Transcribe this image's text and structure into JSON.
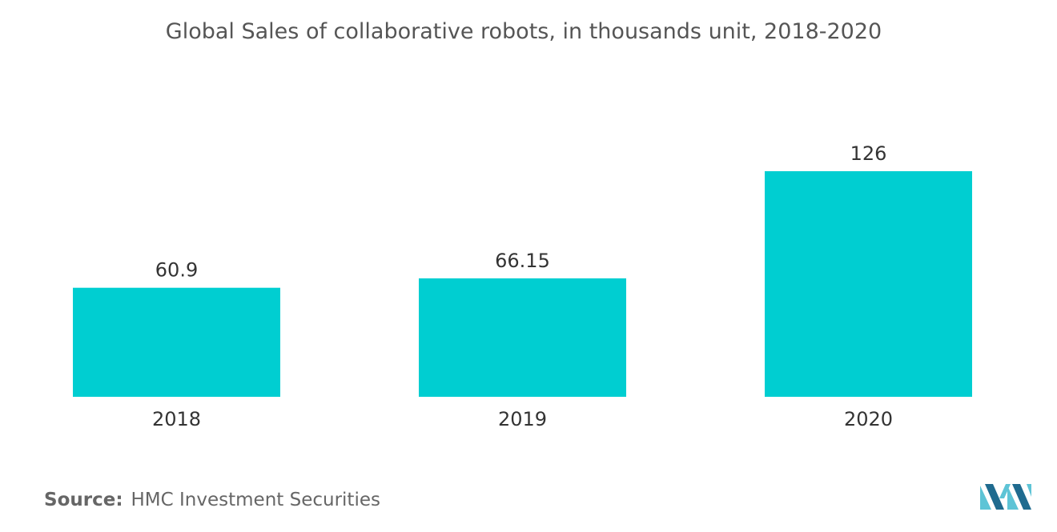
{
  "title": "Global Sales of collaborative robots, in thousands unit, 2018-2020",
  "source": {
    "label": "Source:",
    "text": "HMC Investment Securities"
  },
  "colors": {
    "bar": "#00ced1",
    "logo_light": "#5ec4d6",
    "logo_dark": "#1f6b8f"
  },
  "logo_icon": "mordor-intelligence-logo",
  "chart_data": {
    "type": "bar",
    "categories": [
      "2018",
      "2019",
      "2020"
    ],
    "values": [
      60.9,
      66.15,
      126
    ],
    "value_labels": [
      "60.9",
      "66.15",
      "126"
    ],
    "title": "Global Sales of collaborative robots, in thousands unit, 2018-2020",
    "xlabel": "",
    "ylabel": "",
    "ylim": [
      0,
      126
    ],
    "grid": false,
    "legend": "none"
  }
}
